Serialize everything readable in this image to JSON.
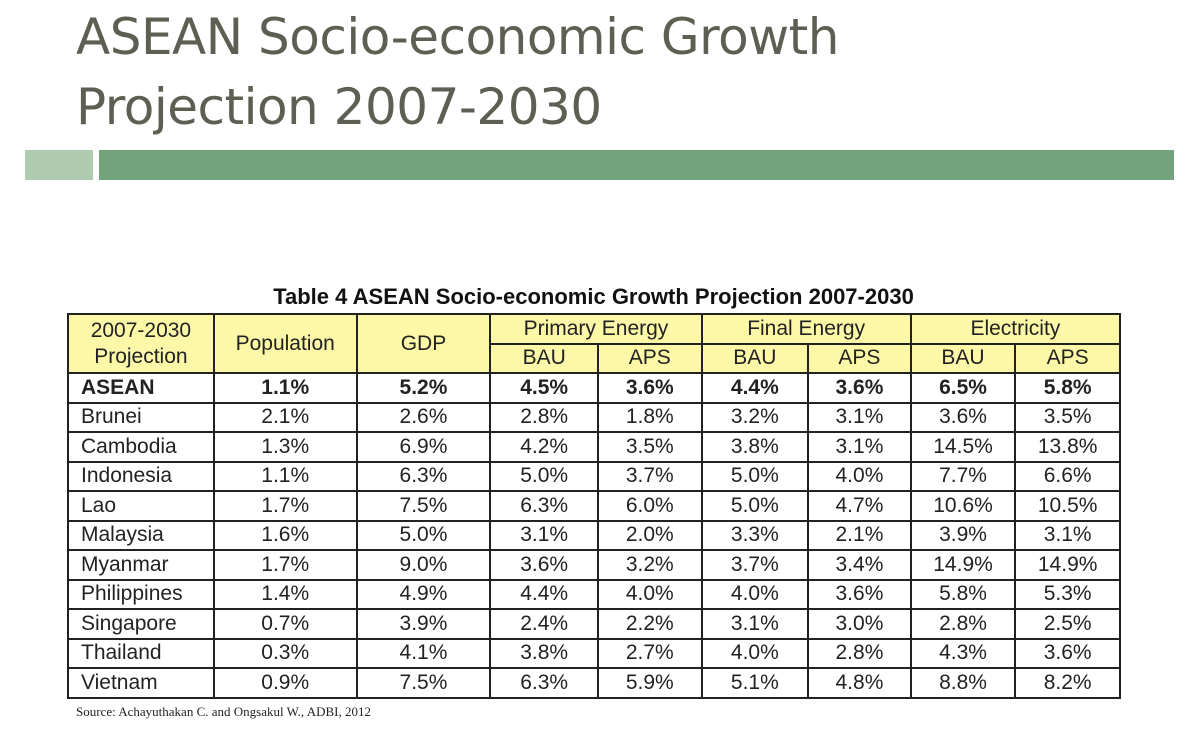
{
  "slide": {
    "title_line1": "ASEAN Socio-economic Growth",
    "title_line2": "Projection 2007-2030",
    "accent_colors": {
      "bar_light": "#aecbaf",
      "bar_dark": "#72a37a",
      "header_fill": "#fcf8a8"
    }
  },
  "table": {
    "caption": "Table 4 ASEAN Socio-economic Growth Projection 2007-2030",
    "header": {
      "projection_line1": "2007-2030",
      "projection_line2": "Projection",
      "population": "Population",
      "gdp": "GDP",
      "primary_energy": "Primary Energy",
      "final_energy": "Final Energy",
      "electricity": "Electricity",
      "sub": [
        "BAU",
        "APS",
        "BAU",
        "APS",
        "BAU",
        "APS"
      ]
    },
    "rows": [
      {
        "name": "ASEAN",
        "values": [
          "1.1%",
          "5.2%",
          "4.5%",
          "3.6%",
          "4.4%",
          "3.6%",
          "6.5%",
          "5.8%"
        ]
      },
      {
        "name": "Brunei",
        "values": [
          "2.1%",
          "2.6%",
          "2.8%",
          "1.8%",
          "3.2%",
          "3.1%",
          "3.6%",
          "3.5%"
        ]
      },
      {
        "name": "Cambodia",
        "values": [
          "1.3%",
          "6.9%",
          "4.2%",
          "3.5%",
          "3.8%",
          "3.1%",
          "14.5%",
          "13.8%"
        ]
      },
      {
        "name": "Indonesia",
        "values": [
          "1.1%",
          "6.3%",
          "5.0%",
          "3.7%",
          "5.0%",
          "4.0%",
          "7.7%",
          "6.6%"
        ]
      },
      {
        "name": "Lao",
        "values": [
          "1.7%",
          "7.5%",
          "6.3%",
          "6.0%",
          "5.0%",
          "4.7%",
          "10.6%",
          "10.5%"
        ]
      },
      {
        "name": "Malaysia",
        "values": [
          "1.6%",
          "5.0%",
          "3.1%",
          "2.0%",
          "3.3%",
          "2.1%",
          "3.9%",
          "3.1%"
        ]
      },
      {
        "name": "Myanmar",
        "values": [
          "1.7%",
          "9.0%",
          "3.6%",
          "3.2%",
          "3.7%",
          "3.4%",
          "14.9%",
          "14.9%"
        ]
      },
      {
        "name": "Philippines",
        "values": [
          "1.4%",
          "4.9%",
          "4.4%",
          "4.0%",
          "4.0%",
          "3.6%",
          "5.8%",
          "5.3%"
        ]
      },
      {
        "name": "Singapore",
        "values": [
          "0.7%",
          "3.9%",
          "2.4%",
          "2.2%",
          "3.1%",
          "3.0%",
          "2.8%",
          "2.5%"
        ]
      },
      {
        "name": "Thailand",
        "values": [
          "0.3%",
          "4.1%",
          "3.8%",
          "2.7%",
          "4.0%",
          "2.8%",
          "4.3%",
          "3.6%"
        ]
      },
      {
        "name": "Vietnam",
        "values": [
          "0.9%",
          "7.5%",
          "6.3%",
          "5.9%",
          "5.1%",
          "4.8%",
          "8.8%",
          "8.2%"
        ]
      }
    ],
    "source": "Source: Achayuthakan C. and Ongsakul W., ADBI, 2012"
  }
}
